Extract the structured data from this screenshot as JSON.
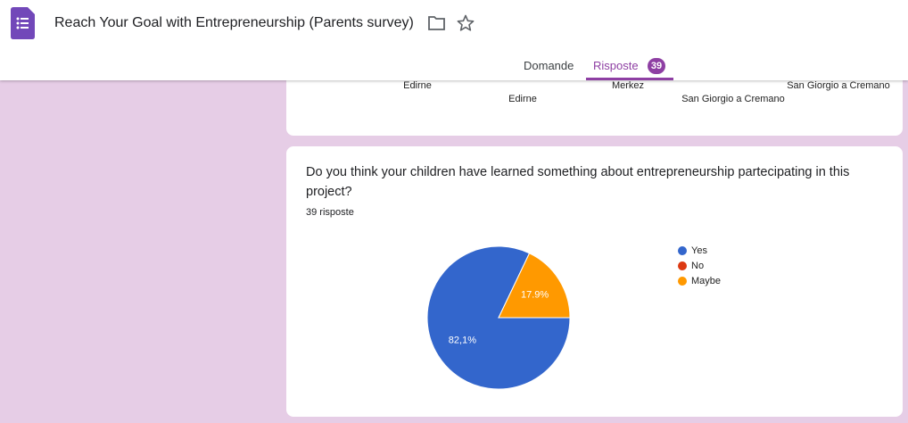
{
  "header": {
    "title": "Reach Your Goal with Entrepreneurship (Parents survey)",
    "tabs": [
      "Domande",
      "Risposte"
    ],
    "responses_badge": "39"
  },
  "previous_card": {
    "axis_labels": [
      "Edirne",
      "Edirne",
      "Merkez",
      "San Giorgio a Cremano",
      "San Giorgio a Cremano"
    ]
  },
  "chart_data": {
    "type": "pie",
    "title": "Do you think your children have learned something about entrepreneurship partecipating in this project?",
    "subtitle": "39 risposte",
    "categories": [
      "Yes",
      "No",
      "Maybe"
    ],
    "values": [
      82.1,
      0,
      17.9
    ],
    "value_labels": [
      "82,1%",
      null,
      "17.9%"
    ],
    "colors": [
      "#3366cc",
      "#dc3912",
      "#ff9900"
    ],
    "legend": "right"
  }
}
